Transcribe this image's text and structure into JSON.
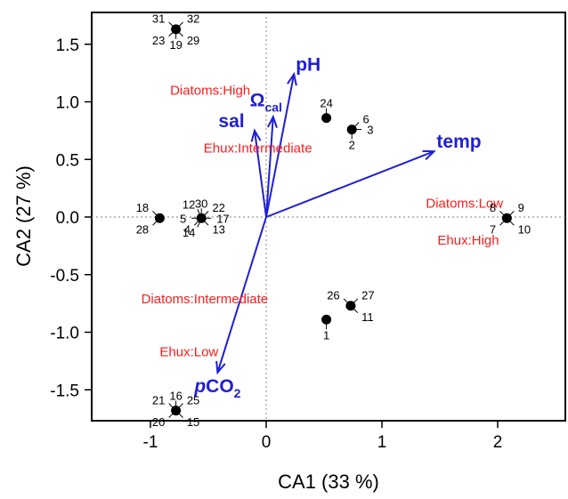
{
  "chart_data": {
    "type": "scatter",
    "title": "",
    "xlabel": "CA1 (33 %)",
    "ylabel": "CA2 (27 %)",
    "xlim": [
      -1.5,
      2.6
    ],
    "ylim": [
      -1.75,
      1.77
    ],
    "x_ticks": [
      -1,
      0,
      1,
      2
    ],
    "y_ticks": [
      -1.5,
      -1.0,
      -0.5,
      0.0,
      0.5,
      1.0,
      1.5
    ],
    "x_tick_labels": [
      "-1",
      "0",
      "1",
      "2"
    ],
    "y_tick_labels": [
      "-1.5",
      "-1.0",
      "-0.5",
      "0.0",
      "0.5",
      "1.0",
      "1.5"
    ],
    "reference_lines": {
      "x": 0,
      "y": 0
    },
    "colors": {
      "points": "#000000",
      "vectors": "#1f1fd6",
      "groups": "#ff1a1a"
    },
    "points": [
      {
        "x": -0.78,
        "y": 1.63,
        "labels": [
          {
            "text": "31",
            "pos": "nw"
          },
          {
            "text": "32",
            "pos": "ne"
          },
          {
            "text": "23",
            "pos": "sw"
          },
          {
            "text": "29",
            "pos": "se"
          },
          {
            "text": "19",
            "pos": "s"
          }
        ]
      },
      {
        "x": 0.52,
        "y": 0.86,
        "labels": [
          {
            "text": "24",
            "pos": "n"
          }
        ]
      },
      {
        "x": 0.74,
        "y": 0.76,
        "labels": [
          {
            "text": "6",
            "pos": "ne"
          },
          {
            "text": "3",
            "pos": "e"
          },
          {
            "text": "2",
            "pos": "s"
          }
        ]
      },
      {
        "x": -0.92,
        "y": -0.01,
        "labels": [
          {
            "text": "18",
            "pos": "nw"
          },
          {
            "text": "28",
            "pos": "sw"
          }
        ]
      },
      {
        "x": -0.56,
        "y": -0.01,
        "labels": [
          {
            "text": "12",
            "pos": "nnw"
          },
          {
            "text": "30",
            "pos": "n"
          },
          {
            "text": "22",
            "pos": "ne"
          },
          {
            "text": "5",
            "pos": "w"
          },
          {
            "text": "4",
            "pos": "sw"
          },
          {
            "text": "17",
            "pos": "e"
          },
          {
            "text": "14",
            "pos": "ssw"
          },
          {
            "text": "13",
            "pos": "se"
          }
        ]
      },
      {
        "x": 2.08,
        "y": -0.01,
        "labels": [
          {
            "text": "8",
            "pos": "nw"
          },
          {
            "text": "9",
            "pos": "ne"
          },
          {
            "text": "7",
            "pos": "sw"
          },
          {
            "text": "10",
            "pos": "se"
          }
        ]
      },
      {
        "x": 0.52,
        "y": -0.89,
        "labels": [
          {
            "text": "1",
            "pos": "s"
          }
        ]
      },
      {
        "x": 0.73,
        "y": -0.77,
        "labels": [
          {
            "text": "26",
            "pos": "nw"
          },
          {
            "text": "27",
            "pos": "ne"
          },
          {
            "text": "11",
            "pos": "se"
          }
        ]
      },
      {
        "x": -0.78,
        "y": -1.68,
        "labels": [
          {
            "text": "21",
            "pos": "nw"
          },
          {
            "text": "16",
            "pos": "n"
          },
          {
            "text": "25",
            "pos": "ne"
          },
          {
            "text": "20",
            "pos": "sw"
          },
          {
            "text": "15",
            "pos": "se"
          }
        ]
      }
    ],
    "vectors": [
      {
        "name": "temp",
        "x": 1.45,
        "y": 0.57
      },
      {
        "name": "pH",
        "x": 0.24,
        "y": 1.24
      },
      {
        "name": "Ω",
        "subscript": "cal",
        "x": 0.06,
        "y": 0.87
      },
      {
        "name": "sal",
        "x": -0.1,
        "y": 0.75
      },
      {
        "name": "pCO",
        "italic_prefix": "p",
        "rest": "CO",
        "subscript": "2",
        "x": -0.42,
        "y": -1.35
      }
    ],
    "group_labels": [
      {
        "text": "Diatoms:High",
        "x": -0.83,
        "y": 1.1
      },
      {
        "text": "Ehux:Intermediate",
        "x": -0.54,
        "y": 0.6
      },
      {
        "text": "Diatoms:Low",
        "x": 1.38,
        "y": 0.12
      },
      {
        "text": "Ehux:High",
        "x": 1.48,
        "y": -0.2
      },
      {
        "text": "Diatoms:Intermediate",
        "x": -1.08,
        "y": -0.71
      },
      {
        "text": "Ehux:Low",
        "x": -0.92,
        "y": -1.17
      }
    ]
  }
}
